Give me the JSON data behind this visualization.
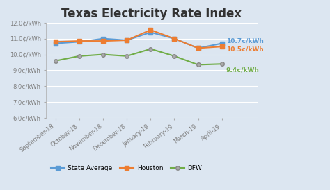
{
  "title": "Texas Electricity Rate Index",
  "categories": [
    "September-18",
    "October-18",
    "November-18",
    "December-18",
    "January-19",
    "February-19",
    "March-19",
    "April-19"
  ],
  "state_average": [
    10.7,
    10.8,
    11.0,
    10.9,
    11.4,
    11.0,
    10.4,
    10.7
  ],
  "houston": [
    10.8,
    10.85,
    10.85,
    10.9,
    11.55,
    11.0,
    10.4,
    10.5
  ],
  "dfw": [
    9.6,
    9.9,
    10.0,
    9.9,
    10.35,
    9.9,
    9.35,
    9.4
  ],
  "state_avg_color": "#5b9bd5",
  "houston_color": "#ed7d31",
  "dfw_color": "#70ad47",
  "bg_color": "#dce6f1",
  "plot_bg_color": "#dce6f1",
  "grid_color": "#c8d4e8",
  "ylim_min": 6.0,
  "ylim_max": 12.0,
  "yticks": [
    6.0,
    7.0,
    8.0,
    9.0,
    10.0,
    11.0,
    12.0
  ],
  "end_labels": [
    "10.7¢/kWh",
    "10.5¢/kWh",
    "9.4¢/kWh"
  ],
  "legend_labels": [
    "State Average",
    "Houston",
    "DFW"
  ],
  "title_fontsize": 12,
  "tick_fontsize": 6,
  "label_color": "#7f7f7f"
}
